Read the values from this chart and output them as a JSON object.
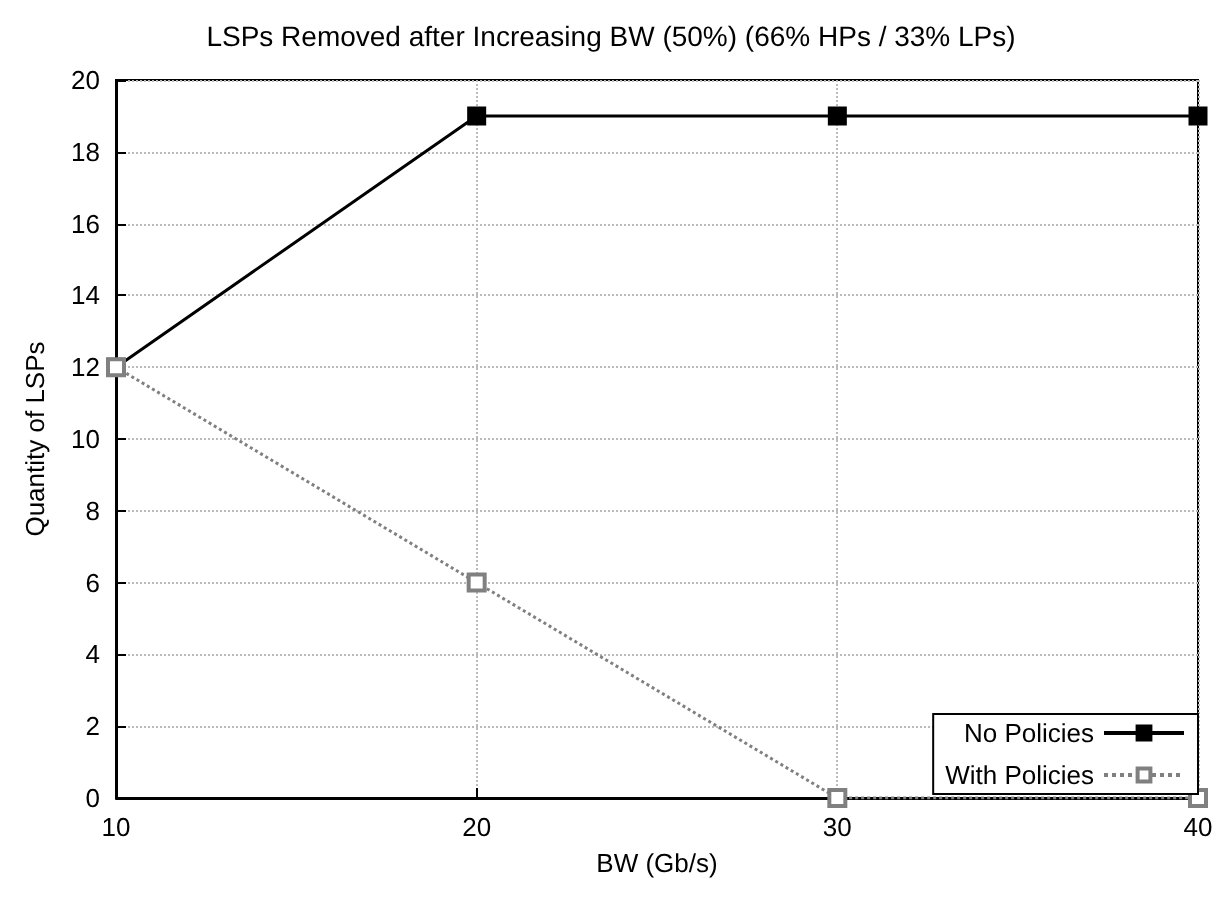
{
  "chart_data": {
    "type": "line",
    "title": "LSPs Removed after Increasing BW (50%) (66% HPs / 33% LPs)",
    "xlabel": "BW (Gb/s)",
    "ylabel": "Quantity of LSPs",
    "x": [
      10,
      20,
      30,
      40
    ],
    "series": [
      {
        "name": "No Policies",
        "color": "#000000",
        "values": [
          12,
          19,
          19,
          19
        ],
        "line_style": "solid"
      },
      {
        "name": "With Policies",
        "color": "#808080",
        "values": [
          12,
          6,
          0,
          0
        ],
        "line_style": "dotted"
      }
    ],
    "xlim": [
      10,
      40
    ],
    "xticks": [
      10,
      20,
      30,
      40
    ],
    "ylim": [
      0,
      20
    ],
    "yticks": [
      0,
      2,
      4,
      6,
      8,
      10,
      12,
      14,
      16,
      18,
      20
    ],
    "grid": true,
    "legend": "bottom right",
    "marker": "square"
  }
}
